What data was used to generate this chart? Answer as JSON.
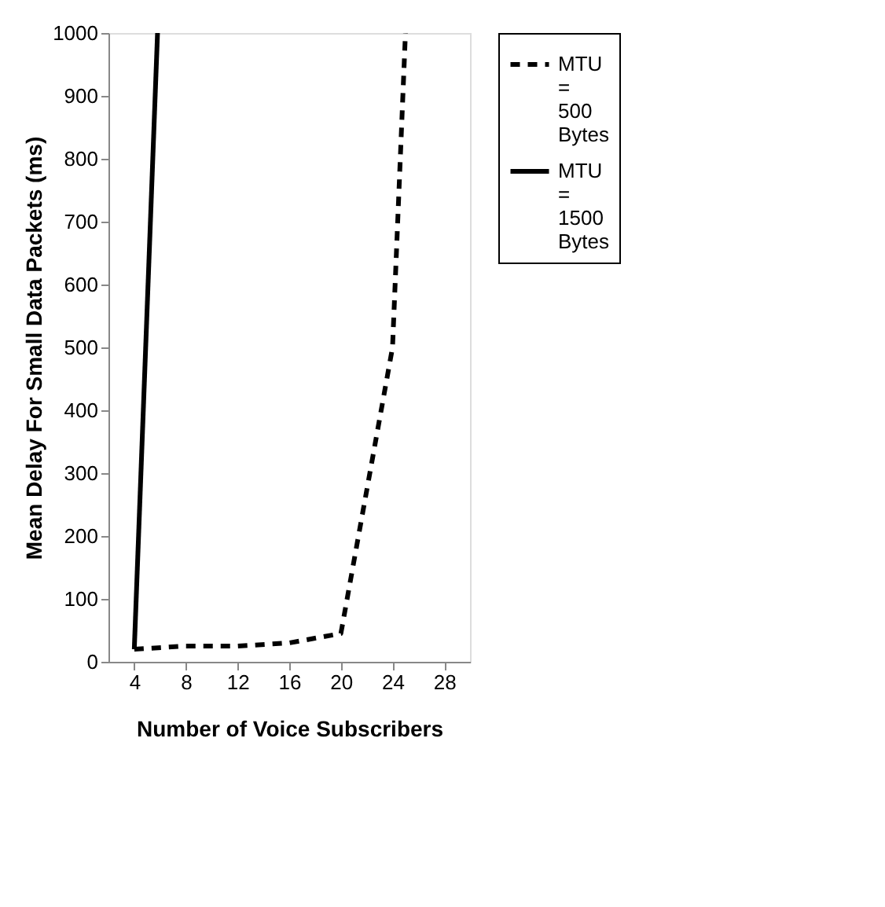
{
  "chart_data": {
    "type": "line",
    "xlabel": "Number of Voice Subscribers",
    "ylabel": "Mean Delay For Small Data Packets (ms)",
    "xlim": [
      2,
      30
    ],
    "xticks": [
      4,
      8,
      12,
      16,
      20,
      24,
      28
    ],
    "ylim": [
      0,
      1000
    ],
    "yticks": [
      0,
      100,
      200,
      300,
      400,
      500,
      600,
      700,
      800,
      900,
      1000
    ],
    "grid": false,
    "legend": "right",
    "marker": "none",
    "series": [
      {
        "name": "MTU = 500 Bytes",
        "color": "#000000",
        "line_style": "dashed",
        "x": [
          4,
          8,
          12,
          16,
          20,
          24,
          25
        ],
        "values": [
          20,
          25,
          25,
          30,
          45,
          500,
          1000
        ]
      },
      {
        "name": "MTU = 1500 Bytes",
        "color": "#000000",
        "line_style": "solid",
        "x": [
          4,
          5.8
        ],
        "values": [
          20,
          1000
        ]
      }
    ]
  }
}
